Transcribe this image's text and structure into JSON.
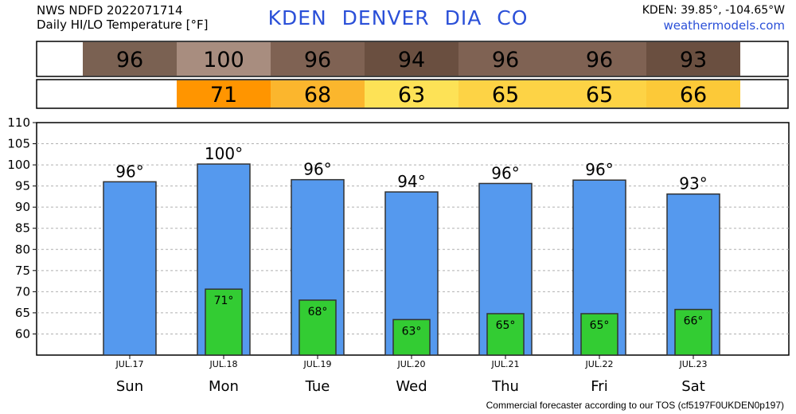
{
  "header": {
    "line1": "NWS NDFD 2022071714",
    "line2": "Daily HI/LO Temperature [°F]",
    "title": "KDEN DENVER DIA CO",
    "coords": "KDEN: 39.85°, -104.65°W",
    "site": "weathermodels.com"
  },
  "footer": "Commercial forecaster according to our TOS (cf5197F0UKDEN0p197)",
  "colors": {
    "hi_bar": "#5599ee",
    "lo_bar": "#33cc33",
    "hi_strip": [
      "#7a6152",
      "#a88d7f",
      "#7f6253",
      "#6a4f40",
      "#7f6253",
      "#7f6253",
      "#6a4f40"
    ],
    "lo_strip": [
      "#ff9500",
      "#fbb62d",
      "#fde256",
      "#fdd345",
      "#fdd345",
      "#fcc938"
    ]
  },
  "chart_data": {
    "type": "bar",
    "categories": [
      "Sun",
      "Mon",
      "Tue",
      "Wed",
      "Thu",
      "Fri",
      "Sat"
    ],
    "dates": [
      "JUL.17",
      "JUL.18",
      "JUL.19",
      "JUL.20",
      "JUL.21",
      "JUL.22",
      "JUL.23"
    ],
    "series": [
      {
        "values": [
          96,
          100.2,
          96.5,
          93.6,
          95.6,
          96.4,
          93.1
        ],
        "labels": [
          "96°",
          "100°",
          "96°",
          "94°",
          "96°",
          "96°",
          "93°"
        ]
      },
      {
        "values": [
          null,
          70.6,
          68.0,
          63.4,
          64.8,
          64.8,
          65.8
        ],
        "labels": [
          "",
          "71°",
          "68°",
          "63°",
          "65°",
          "65°",
          "66°"
        ]
      }
    ],
    "hi_strip": [
      "96",
      "100",
      "96",
      "94",
      "96",
      "96",
      "93"
    ],
    "lo_strip": [
      "",
      "71",
      "68",
      "63",
      "65",
      "65",
      "66"
    ],
    "ylim": [
      55,
      110
    ],
    "yticks": [
      60,
      65,
      70,
      75,
      80,
      85,
      90,
      95,
      100,
      105,
      110
    ],
    "grid": true
  }
}
